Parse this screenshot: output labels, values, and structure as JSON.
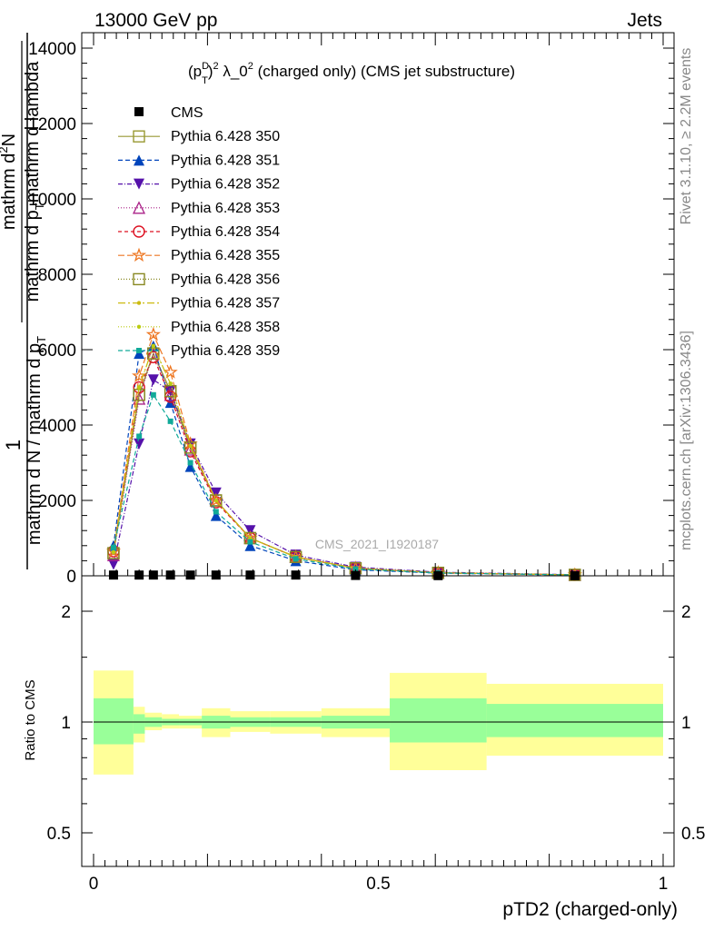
{
  "header": {
    "energy_label": "13000 GeV pp",
    "process_label": "Jets"
  },
  "side_text": {
    "rivet": "Rivet 3.1.10, ≥ 2.2M events",
    "mcplots": "mcplots.cern.ch [arXiv:1306.3436]"
  },
  "chart_data": [
    {
      "type": "line",
      "panel": "main",
      "title": "(p_T^D)^2 λ_0^2 (charged only) (CMS jet substructure)",
      "title_parts": {
        "p": "(p",
        "sup1": "D",
        "sub1": "T",
        "close": ")",
        "sup2": "2",
        "lambda": " λ_0",
        "sup3": "2",
        "rest": " (charged only) (CMS jet substructure)"
      },
      "ylabel_parts": {
        "one": "1",
        "denom": "mathrm d N / mathrm d p",
        "denom_sub": "T",
        "num": "mathrm d",
        "num_sup": "2",
        "num_n": "N",
        "num_denom": "mathrm d p",
        "num_denom_sub": "T",
        "num_tail": "mathrm d lambda"
      },
      "watermark": "CMS_2021_I1920187",
      "xlim": [
        0,
        1
      ],
      "ylim": [
        0,
        14000
      ],
      "yticks": [
        0,
        2000,
        4000,
        6000,
        8000,
        10000,
        12000,
        14000
      ],
      "ytick_labels": [
        "0",
        "2000",
        "4000",
        "6000",
        "8000",
        "10000",
        "12000",
        "14000"
      ],
      "x": [
        0.035,
        0.08,
        0.105,
        0.135,
        0.17,
        0.215,
        0.275,
        0.355,
        0.46,
        0.605,
        0.845
      ],
      "cms": {
        "name": "CMS",
        "values": [
          20,
          20,
          20,
          20,
          20,
          20,
          20,
          20,
          10,
          5,
          2
        ],
        "color": "#000000"
      },
      "series": [
        {
          "name": "Pythia 6.428 350",
          "color": "#999933",
          "marker": "square-open",
          "dash": "",
          "values": [
            600,
            4800,
            5900,
            4900,
            3400,
            2000,
            1000,
            500,
            200,
            80,
            25
          ]
        },
        {
          "name": "Pythia 6.428 351",
          "color": "#0044bb",
          "marker": "triangle-up",
          "dash": "5,3",
          "values": [
            800,
            5900,
            6100,
            4600,
            2900,
            1600,
            800,
            400,
            160,
            70,
            20
          ]
        },
        {
          "name": "Pythia 6.428 352",
          "color": "#5511aa",
          "marker": "triangle-down",
          "dash": "5,2,1,2",
          "values": [
            300,
            3500,
            5200,
            4900,
            3500,
            2200,
            1200,
            550,
            230,
            95,
            30
          ]
        },
        {
          "name": "Pythia 6.428 353",
          "color": "#aa2288",
          "marker": "triangle-open",
          "dash": "1,2",
          "values": [
            550,
            4700,
            5900,
            4800,
            3350,
            2000,
            1000,
            500,
            200,
            80,
            25
          ]
        },
        {
          "name": "Pythia 6.428 354",
          "color": "#dd1122",
          "marker": "circle-open",
          "dash": "4,3",
          "values": [
            650,
            5000,
            5800,
            4750,
            3300,
            1950,
            1000,
            500,
            200,
            80,
            25
          ]
        },
        {
          "name": "Pythia 6.428 355",
          "color": "#ee7722",
          "marker": "star-open",
          "dash": "7,3",
          "values": [
            650,
            5300,
            6400,
            5400,
            3500,
            2000,
            1000,
            500,
            200,
            80,
            25
          ]
        },
        {
          "name": "Pythia 6.428 356",
          "color": "#888822",
          "marker": "square-open",
          "dash": "1,2",
          "values": [
            600,
            4800,
            5900,
            4900,
            3400,
            2000,
            1000,
            500,
            200,
            80,
            25
          ]
        },
        {
          "name": "Pythia 6.428 357",
          "color": "#ccbb11",
          "marker": "dot",
          "dash": "8,3,2,3",
          "values": [
            620,
            5000,
            6100,
            5100,
            3450,
            2000,
            1000,
            500,
            200,
            80,
            25
          ]
        },
        {
          "name": "Pythia 6.428 358",
          "color": "#bbcc11",
          "marker": "dot",
          "dash": "1,2",
          "values": [
            630,
            5000,
            6100,
            5100,
            3450,
            2000,
            1000,
            500,
            200,
            80,
            25
          ]
        },
        {
          "name": "Pythia 6.428 359",
          "color": "#11aa99",
          "marker": "dot-square",
          "dash": "5,3",
          "values": [
            750,
            3700,
            4800,
            4100,
            3000,
            1700,
            900,
            450,
            180,
            75,
            22
          ]
        }
      ]
    },
    {
      "type": "area",
      "panel": "ratio",
      "ylabel": "Ratio to CMS",
      "xlabel": "pTD2 (charged-only)",
      "xlim": [
        0,
        1
      ],
      "ylim": [
        0.4,
        2.4
      ],
      "log_y": true,
      "yticks": [
        0.5,
        1,
        2
      ],
      "ytick_labels": [
        "0.5",
        "1",
        "2"
      ],
      "xticks": [
        0,
        0.5,
        1
      ],
      "xtick_labels": [
        "0",
        "0.5",
        "1"
      ],
      "bin_edges": [
        0.0,
        0.07,
        0.09,
        0.12,
        0.15,
        0.19,
        0.24,
        0.31,
        0.4,
        0.52,
        0.69,
        1.0
      ],
      "band_outer": {
        "color": "#ffff99",
        "lo": [
          0.72,
          0.88,
          0.95,
          0.96,
          0.96,
          0.91,
          0.94,
          0.93,
          0.91,
          0.74,
          0.81
        ],
        "hi": [
          1.38,
          1.1,
          1.06,
          1.05,
          1.04,
          1.09,
          1.07,
          1.07,
          1.09,
          1.36,
          1.27
        ]
      },
      "band_inner": {
        "color": "#99ff99",
        "lo": [
          0.87,
          0.93,
          0.97,
          0.98,
          0.98,
          0.96,
          0.97,
          0.97,
          0.96,
          0.88,
          0.91
        ],
        "hi": [
          1.16,
          1.05,
          1.03,
          1.02,
          1.02,
          1.04,
          1.03,
          1.03,
          1.04,
          1.16,
          1.12
        ]
      },
      "reference_line": 1
    }
  ]
}
